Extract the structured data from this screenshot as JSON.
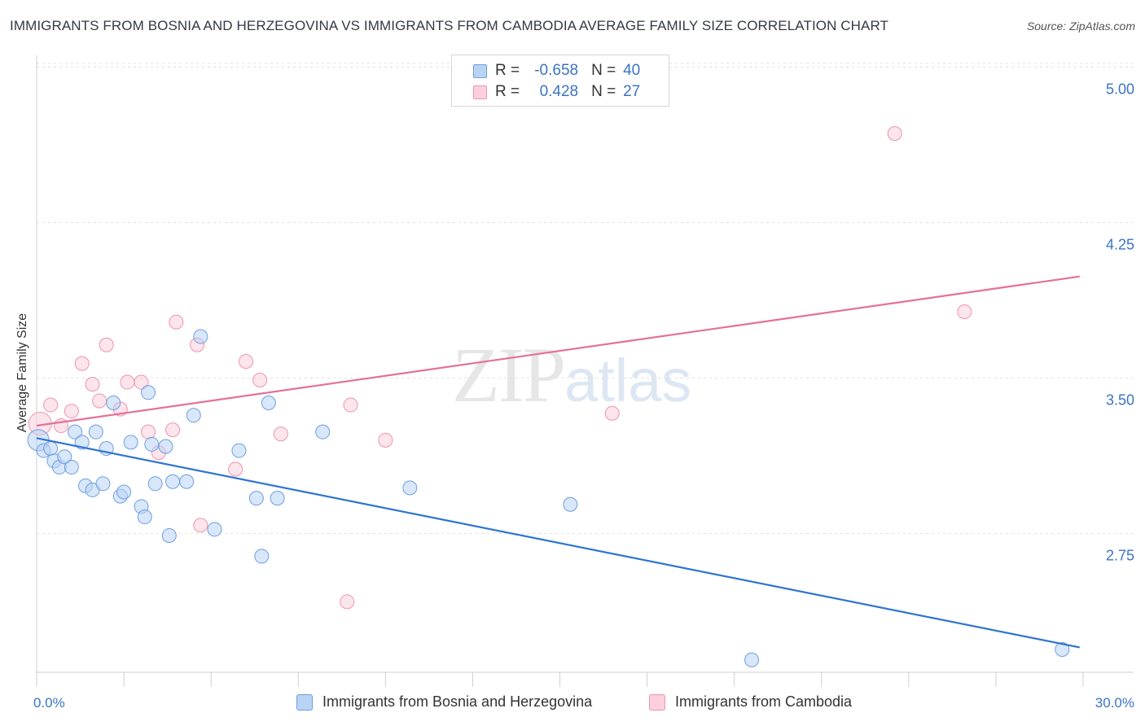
{
  "title": "IMMIGRANTS FROM BOSNIA AND HERZEGOVINA VS IMMIGRANTS FROM CAMBODIA AVERAGE FAMILY SIZE CORRELATION CHART",
  "source": "Source: ZipAtlas.com",
  "watermark": {
    "zip": "ZIP",
    "atlas": "atlas"
  },
  "legend": {
    "rows": [
      {
        "r_label": "R =",
        "r_value": "-0.658",
        "n_label": "N =",
        "n_value": "40"
      },
      {
        "r_label": "R =",
        "r_value": "0.428",
        "n_label": "N =",
        "n_value": "27"
      }
    ]
  },
  "colors": {
    "blue_fill": "#b9d3f5",
    "blue_stroke": "#6d9ee0",
    "blue_line": "#2f74d0",
    "pink_fill": "#fbd0dc",
    "pink_stroke": "#ee93ad",
    "pink_line": "#e4709a",
    "axis_text": "#3b73c4",
    "grid": "#e0e0e0"
  },
  "chart_data": {
    "type": "scatter",
    "title": "IMMIGRANTS FROM BOSNIA AND HERZEGOVINA VS IMMIGRANTS FROM CAMBODIA AVERAGE FAMILY SIZE CORRELATION CHART",
    "xlabel": "",
    "ylabel": "Average Family Size",
    "xlim": [
      0,
      30
    ],
    "ylim": [
      2.08,
      5.12
    ],
    "x_tick_labels": [
      "0.0%",
      "30.0%"
    ],
    "y_ticks": [
      5.0,
      4.25,
      3.5,
      2.75
    ],
    "y_tick_labels": [
      "5.00",
      "4.25",
      "3.50",
      "2.75"
    ],
    "grid": true,
    "series": [
      {
        "name": "Immigrants from Bosnia and Herzegovina",
        "color": "#6d9ee0",
        "points": [
          [
            0.05,
            3.2
          ],
          [
            0.2,
            3.15
          ],
          [
            0.4,
            3.16
          ],
          [
            0.5,
            3.1
          ],
          [
            0.65,
            3.07
          ],
          [
            0.8,
            3.12
          ],
          [
            1.0,
            3.07
          ],
          [
            1.1,
            3.24
          ],
          [
            1.3,
            3.19
          ],
          [
            1.4,
            2.98
          ],
          [
            1.6,
            2.96
          ],
          [
            1.7,
            3.24
          ],
          [
            1.9,
            2.99
          ],
          [
            2.0,
            3.16
          ],
          [
            2.2,
            3.38
          ],
          [
            2.4,
            2.93
          ],
          [
            2.5,
            2.95
          ],
          [
            2.7,
            3.19
          ],
          [
            3.0,
            2.88
          ],
          [
            3.1,
            2.83
          ],
          [
            3.2,
            3.43
          ],
          [
            3.3,
            3.18
          ],
          [
            3.4,
            2.99
          ],
          [
            3.7,
            3.17
          ],
          [
            3.8,
            2.74
          ],
          [
            3.9,
            3.0
          ],
          [
            4.3,
            3.0
          ],
          [
            4.5,
            3.32
          ],
          [
            4.7,
            3.7
          ],
          [
            5.1,
            2.77
          ],
          [
            5.8,
            3.15
          ],
          [
            6.3,
            2.92
          ],
          [
            6.45,
            2.64
          ],
          [
            6.65,
            3.38
          ],
          [
            6.9,
            2.92
          ],
          [
            8.2,
            3.24
          ],
          [
            10.7,
            2.97
          ],
          [
            15.3,
            2.89
          ],
          [
            20.5,
            2.14
          ],
          [
            29.4,
            2.19
          ]
        ],
        "trend": {
          "x": [
            0,
            29.9
          ],
          "y": [
            3.21,
            2.2
          ]
        }
      },
      {
        "name": "Immigrants from Cambodia",
        "color": "#ee93ad",
        "points": [
          [
            0.1,
            3.28
          ],
          [
            0.4,
            3.37
          ],
          [
            0.7,
            3.27
          ],
          [
            1.0,
            3.34
          ],
          [
            1.3,
            3.57
          ],
          [
            1.6,
            3.47
          ],
          [
            1.8,
            3.39
          ],
          [
            2.0,
            3.66
          ],
          [
            2.4,
            3.35
          ],
          [
            2.6,
            3.48
          ],
          [
            3.0,
            3.48
          ],
          [
            3.2,
            3.24
          ],
          [
            3.5,
            3.14
          ],
          [
            3.9,
            3.25
          ],
          [
            4.0,
            3.77
          ],
          [
            4.6,
            3.66
          ],
          [
            4.7,
            2.79
          ],
          [
            5.7,
            3.06
          ],
          [
            6.0,
            3.58
          ],
          [
            6.4,
            3.49
          ],
          [
            7.0,
            3.23
          ],
          [
            8.9,
            2.42
          ],
          [
            9.0,
            3.37
          ],
          [
            10.0,
            3.2
          ],
          [
            16.5,
            3.33
          ],
          [
            24.6,
            4.68
          ],
          [
            26.6,
            3.82
          ]
        ],
        "trend": {
          "x": [
            0,
            29.9
          ],
          "y": [
            3.27,
            3.99
          ]
        }
      }
    ]
  },
  "bottom_legend": [
    {
      "label": "Immigrants from Bosnia and Herzegovina"
    },
    {
      "label": "Immigrants from Cambodia"
    }
  ]
}
